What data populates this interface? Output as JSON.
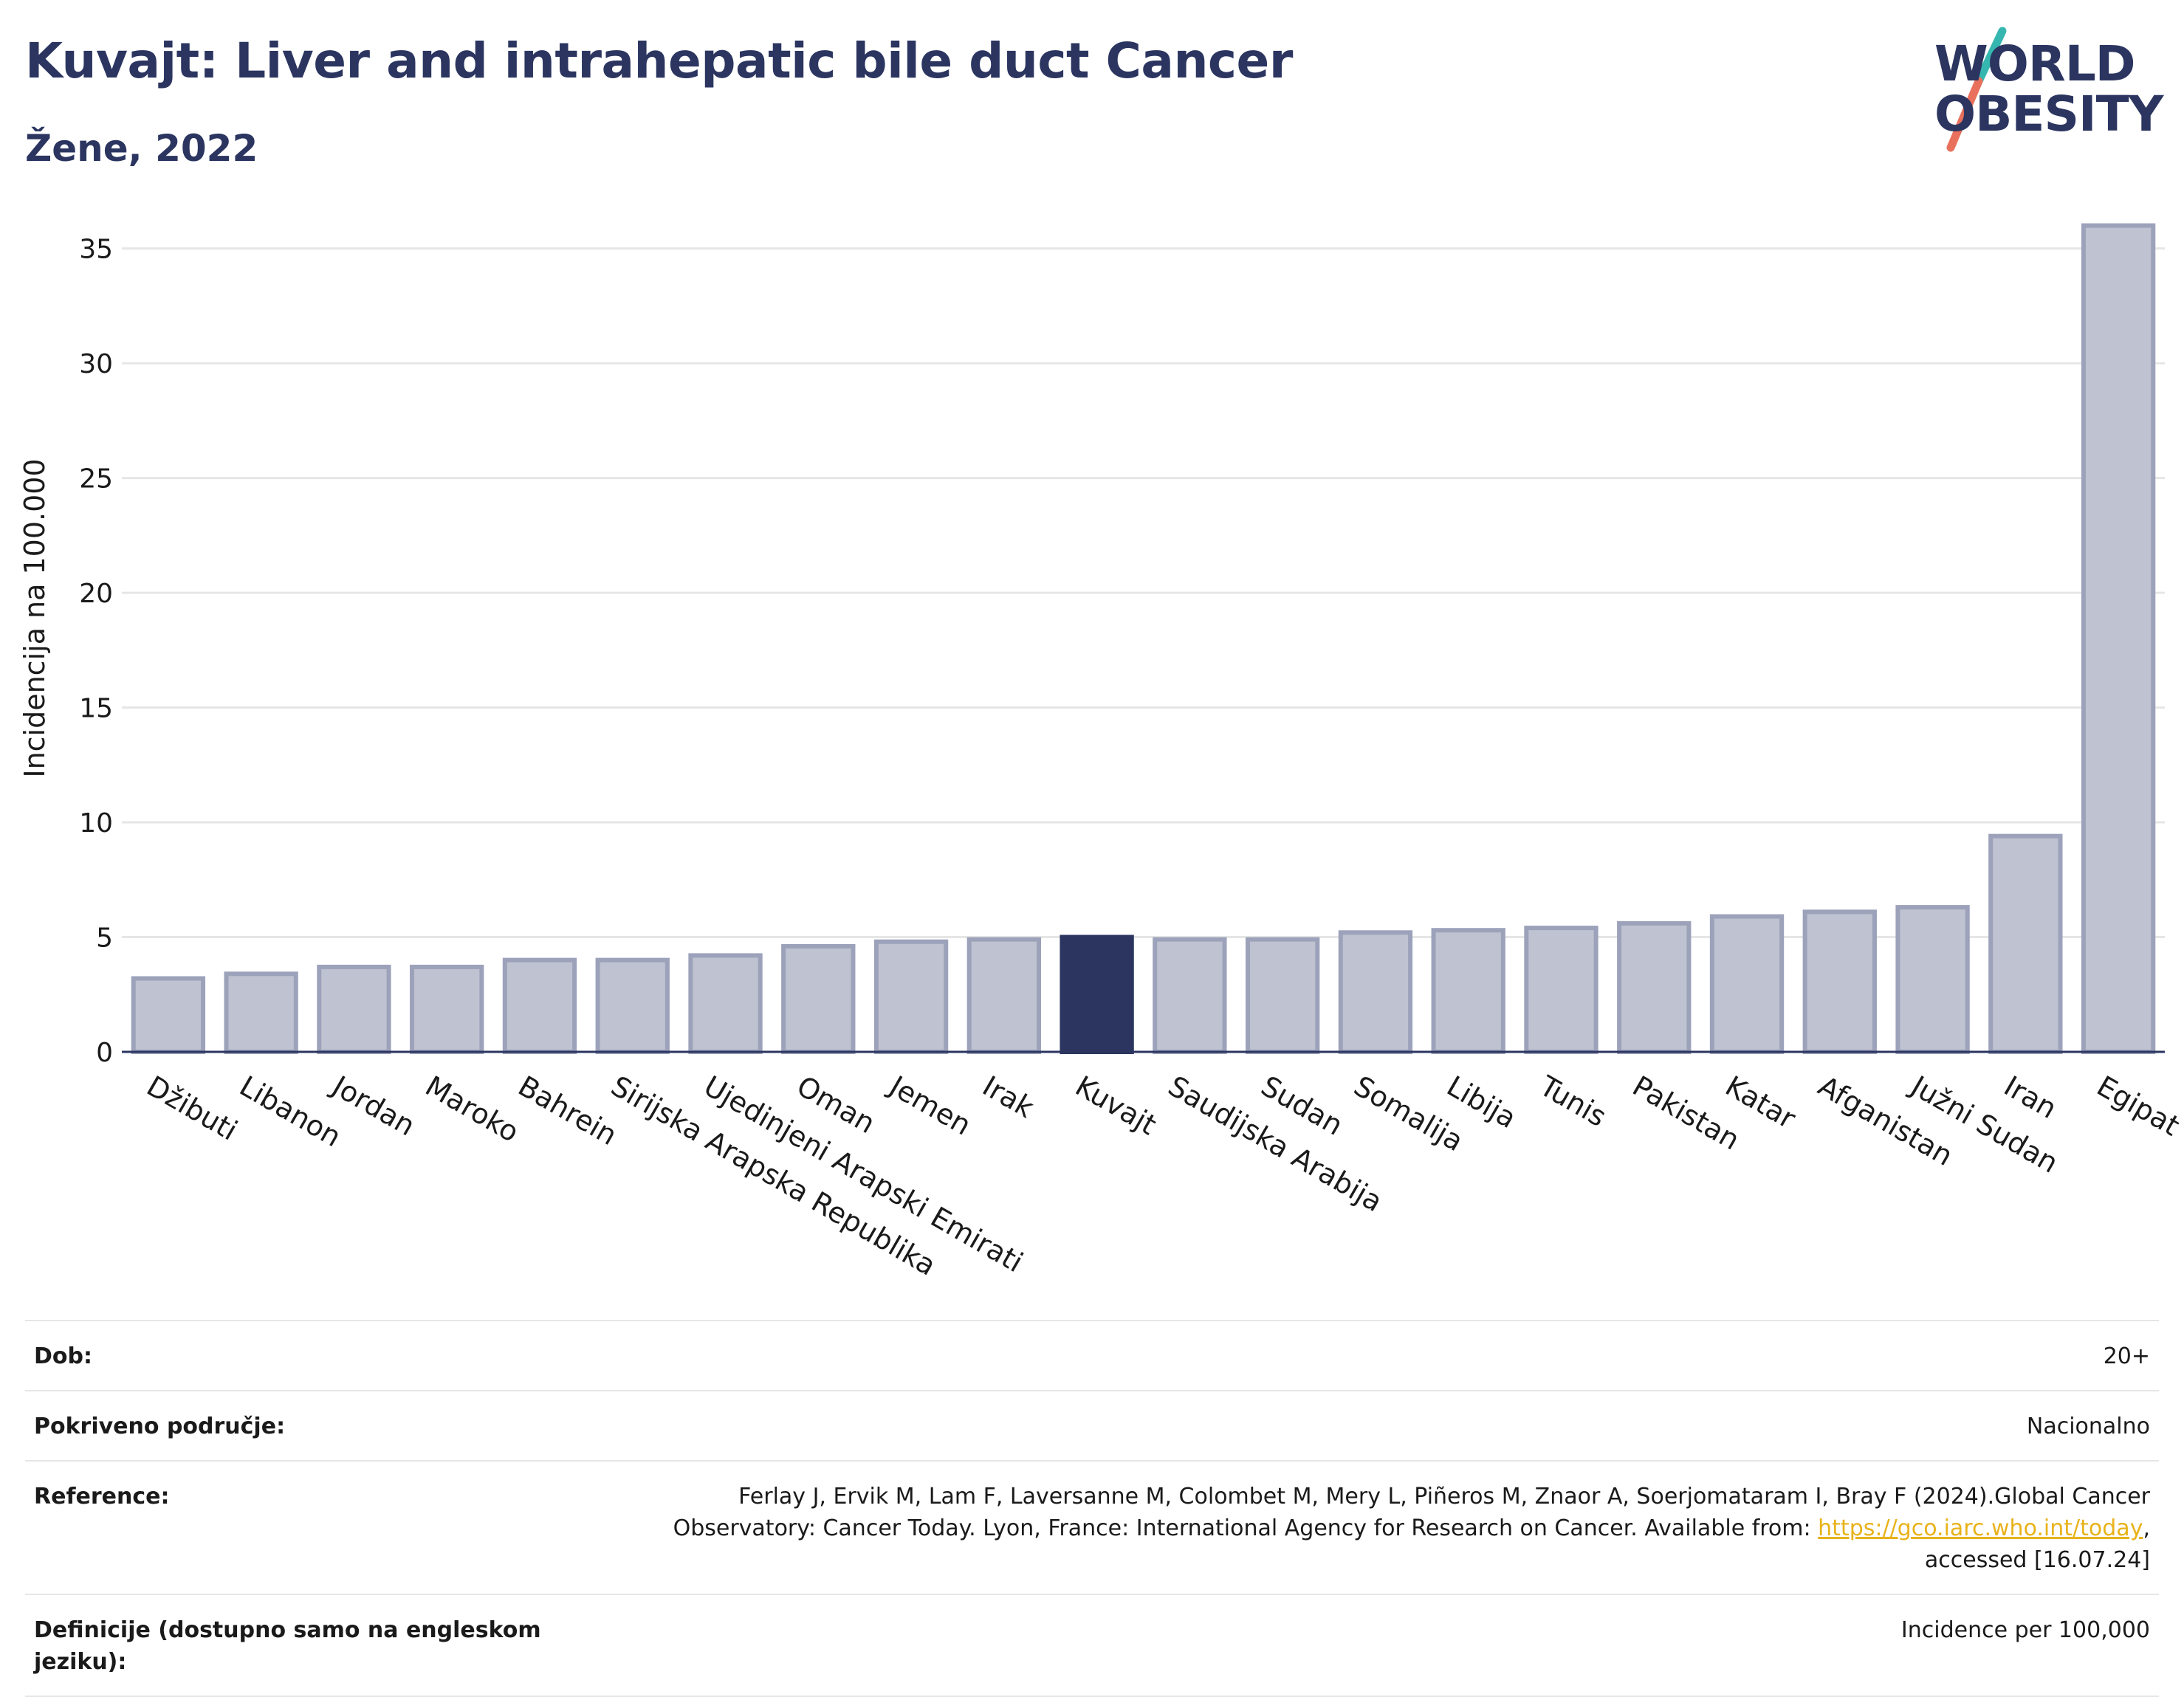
{
  "header": {
    "title": "Kuvajt: Liver and intrahepatic bile duct Cancer",
    "subtitle": "Žene, 2022"
  },
  "logo": {
    "line1": "WORLD",
    "line2": "OBESITY",
    "colors": {
      "text": "#2b3560",
      "slash_top": "#35b7b0",
      "slash_bottom": "#e8705c"
    }
  },
  "chart_data": {
    "type": "bar",
    "ylabel": "Incidencija na 100.000",
    "xlabel": "",
    "ylim": [
      0,
      36.5
    ],
    "yticks": [
      0,
      5,
      10,
      15,
      20,
      25,
      30,
      35
    ],
    "grid": true,
    "highlight": "Kuvajt",
    "colors": {
      "bar": "#bfc2d0",
      "bar_edge": "#9da2bb",
      "highlight": "#2b3560",
      "grid": "#e6e6e6",
      "axis": "#2b3560"
    },
    "categories": [
      "Džibuti",
      "Libanon",
      "Jordan",
      "Maroko",
      "Bahrein",
      "Sirijska Arapska Republika",
      "Ujedinjeni Arapski Emirati",
      "Oman",
      "Jemen",
      "Irak",
      "Kuvajt",
      "Saudijska Arabija",
      "Sudan",
      "Somalija",
      "Libija",
      "Tunis",
      "Pakistan",
      "Katar",
      "Afganistan",
      "Južni Sudan",
      "Iran",
      "Egipat"
    ],
    "values": [
      3.2,
      3.4,
      3.7,
      3.7,
      4.0,
      4.0,
      4.2,
      4.6,
      4.8,
      4.9,
      5.0,
      4.9,
      4.9,
      5.2,
      5.3,
      5.4,
      5.6,
      5.9,
      6.1,
      6.3,
      9.4,
      36.0
    ]
  },
  "meta": {
    "rows": [
      {
        "label": "Dob:",
        "value": "20+"
      },
      {
        "label": "Pokriveno područje:",
        "value": "Nacionalno"
      },
      {
        "label": "Reference:",
        "value_lines": [
          "Ferlay J, Ervik M, Lam F, Laversanne M, Colombet M, Mery L, Piñeros M, Znaor A, Soerjomataram I, Bray F (2024).Global Cancer",
          "Observatory: Cancer Today. Lyon, France: International Agency for Research on Cancer. Available from: ",
          "https://gco.iarc.who.int/today",
          ",",
          "accessed [16.07.24]"
        ]
      },
      {
        "label": "Definicije (dostupno samo na engleskom jeziku):",
        "value": "Incidence per 100,000"
      }
    ]
  }
}
